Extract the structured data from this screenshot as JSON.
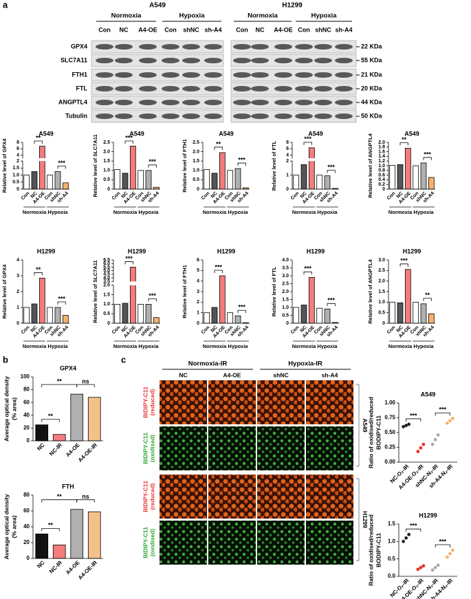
{
  "panel_labels": [
    "a",
    "b",
    "c"
  ],
  "blots": {
    "cell_lines": [
      "A549",
      "H1299"
    ],
    "conditions": [
      "Normoxia",
      "Hypoxia"
    ],
    "lanes": [
      "Con",
      "NC",
      "A4-OE",
      "Con",
      "shNC",
      "sh-A4"
    ],
    "proteins": [
      "GPX4",
      "SLC7A11",
      "FTH1",
      "FTL",
      "ANGPTL4",
      "Tubulin"
    ],
    "sizes": [
      "22 KDa",
      "55 KDa",
      "21 KDa",
      "20 KDa",
      "44 KDa",
      "50 KDa"
    ]
  },
  "imaging": {
    "conditions": [
      "Normoxia-IR",
      "Hypoxia-IR"
    ],
    "groups": [
      "NC",
      "A4-OE",
      "shNC",
      "sh-A4"
    ],
    "stains": [
      [
        "BIDIPY-C11",
        "(reduced)"
      ],
      [
        "BIDIPY-C11",
        "(oxidised)"
      ]
    ],
    "cell_lines": [
      "A549",
      "H1299"
    ]
  },
  "chart_data": [
    {
      "type": "bar",
      "title": "A549",
      "ylabel": "Relative level of GPX4",
      "categories": [
        "Con",
        "NC",
        "A4-OE",
        "Con",
        "shNC",
        "sh-A4"
      ],
      "groups": [
        "Normoxia",
        "Hypoxia"
      ],
      "values": [
        1.0,
        1.25,
        6.8,
        1.0,
        1.25,
        0.45
      ],
      "colors": [
        "#ffffff",
        "#555555",
        "#f47c7c",
        "#ffffff",
        "#b0b0b0",
        "#f5b26b"
      ],
      "ylim": [
        0,
        8
      ],
      "ybreak": [
        2,
        3
      ],
      "yticks": [
        0,
        0.5,
        {
          "value": 1,
          "label": "1.0"
        },
        1.5,
        2,
        4,
        6,
        8
      ],
      "annotations": [
        "**",
        "***"
      ]
    },
    {
      "type": "bar",
      "title": "A549",
      "ylabel": "Relative level of SLC7A11",
      "categories": [
        "Con",
        "NC",
        "A4-OE",
        "Con",
        "shNC",
        "sh-A4"
      ],
      "groups": [
        "Normoxia",
        "Hypoxia"
      ],
      "values": [
        1.05,
        0.85,
        2.3,
        1.0,
        1.0,
        0.1
      ],
      "colors": [
        "#ffffff",
        "#555555",
        "#f47c7c",
        "#ffffff",
        "#b0b0b0",
        "#f5b26b"
      ],
      "ylim": [
        0,
        2.5
      ],
      "yticks": [
        0,
        0.5,
        {
          "value": 1,
          "label": "1.0"
        },
        1.5,
        {
          "value": 2,
          "label": "2.0"
        },
        2.5
      ],
      "annotations": [
        "***",
        "***"
      ]
    },
    {
      "type": "bar",
      "title": "A549",
      "ylabel": "Relative level of FTH1",
      "categories": [
        "Con",
        "NC",
        "A4-OE",
        "Con",
        "shNC",
        "sh-A4"
      ],
      "groups": [
        "Normoxia",
        "Hypoxia"
      ],
      "values": [
        1.05,
        0.85,
        1.95,
        1.0,
        1.1,
        0.07
      ],
      "colors": [
        "#ffffff",
        "#555555",
        "#f47c7c",
        "#ffffff",
        "#b0b0b0",
        "#f5b26b"
      ],
      "ylim": [
        0,
        2.5
      ],
      "yticks": [
        0,
        0.5,
        {
          "value": 1,
          "label": "1.0"
        },
        1.5,
        {
          "value": 2,
          "label": "2.0"
        },
        2.5
      ],
      "annotations": [
        "**",
        "***"
      ]
    },
    {
      "type": "bar",
      "title": "A549",
      "ylabel": "Relative level of FTL",
      "categories": [
        "Con",
        "NC",
        "A4-OE",
        "Con",
        "shNC",
        "sh-A4"
      ],
      "groups": [
        "Normoxia",
        "Hypoxia"
      ],
      "values": [
        1.0,
        1.75,
        6.3,
        1.0,
        0.95,
        0.05
      ],
      "colors": [
        "#ffffff",
        "#555555",
        "#f47c7c",
        "#ffffff",
        "#b0b0b0",
        "#f5b26b"
      ],
      "ylim": [
        0,
        8
      ],
      "ybreak": [
        2,
        3
      ],
      "yticks": [
        0,
        1,
        2,
        4,
        6,
        8
      ],
      "annotations": [
        "***",
        "***"
      ]
    },
    {
      "type": "bar",
      "title": "A549",
      "ylabel": "Relative level of ANGPTL4",
      "categories": [
        "Con",
        "NC",
        "A4-OE",
        "Con",
        "shNC",
        "sh-A4"
      ],
      "groups": [
        "Normoxia",
        "Hypoxia"
      ],
      "values": [
        1.02,
        1.05,
        1.75,
        1.0,
        1.12,
        0.5
      ],
      "colors": [
        "#ffffff",
        "#555555",
        "#f47c7c",
        "#ffffff",
        "#b0b0b0",
        "#f5b26b"
      ],
      "ylim": [
        0,
        2
      ],
      "yticks": [
        0,
        0.2,
        0.4,
        0.6,
        0.8,
        {
          "value": 1,
          "label": "1.0"
        },
        1.2,
        1.4,
        1.6,
        1.8,
        {
          "value": 2,
          "label": "2.0"
        }
      ],
      "annotations": [
        "**",
        "***"
      ]
    },
    {
      "type": "bar",
      "title": "H1299",
      "ylabel": "Relative level of GPX4",
      "categories": [
        "Con",
        "NC",
        "A4-OE",
        "Con",
        "shNC",
        "sh-A4"
      ],
      "groups": [
        "Normoxia",
        "Hypoxia"
      ],
      "values": [
        1.0,
        1.22,
        2.85,
        1.0,
        1.0,
        0.5
      ],
      "colors": [
        "#ffffff",
        "#555555",
        "#f47c7c",
        "#ffffff",
        "#b0b0b0",
        "#f5b26b"
      ],
      "ylim": [
        0,
        4
      ],
      "yticks": [
        0,
        1,
        2,
        3,
        4
      ],
      "annotations": [
        "**",
        "***"
      ]
    },
    {
      "type": "bar",
      "title": "H1299",
      "ylabel": "Relative level of SLC7A11",
      "categories": [
        "Con",
        "NC",
        "A4-OE",
        "Con",
        "shNC",
        "sh-A4"
      ],
      "groups": [
        "Normoxia",
        "Hypoxia"
      ],
      "values": [
        1.0,
        1.05,
        5.5,
        1.0,
        1.0,
        0.3
      ],
      "colors": [
        "#ffffff",
        "#555555",
        "#f47c7c",
        "#ffffff",
        "#b0b0b0",
        "#f5b26b"
      ],
      "ylim": [
        0,
        6.5
      ],
      "ybreak": [
        2,
        3.5
      ],
      "yticks": [
        0,
        0.5,
        {
          "value": 1,
          "label": "1.0"
        },
        1.5,
        {
          "value": 2,
          "label": "2.0"
        },
        3.5,
        {
          "value": 4,
          "label": "4.0"
        },
        4.5,
        {
          "value": 5,
          "label": "5.0"
        },
        5.5,
        {
          "value": 6,
          "label": "6.0"
        },
        6.5
      ],
      "annotations": [
        "***",
        "***"
      ]
    },
    {
      "type": "bar",
      "title": "H1299",
      "ylabel": "Relative level of FTH1",
      "categories": [
        "Con",
        "NC",
        "A4-OE",
        "Con",
        "shNC",
        "sh-A4"
      ],
      "groups": [
        "Normoxia",
        "Hypoxia"
      ],
      "values": [
        1.0,
        1.5,
        4.5,
        1.0,
        0.7,
        0.05
      ],
      "colors": [
        "#ffffff",
        "#555555",
        "#f47c7c",
        "#ffffff",
        "#b0b0b0",
        "#f5b26b"
      ],
      "ylim": [
        0,
        6
      ],
      "yticks": [
        0,
        1,
        2,
        3,
        4,
        5,
        6
      ],
      "annotations": [
        "***",
        "***"
      ]
    },
    {
      "type": "bar",
      "title": "H1299",
      "ylabel": "Relative level of FTL",
      "categories": [
        "Con",
        "NC",
        "A4-OE",
        "Con",
        "shNC",
        "sh-A4"
      ],
      "groups": [
        "Normoxia",
        "Hypoxia"
      ],
      "values": [
        1.0,
        1.15,
        2.9,
        0.95,
        0.9,
        0.05
      ],
      "colors": [
        "#ffffff",
        "#555555",
        "#f47c7c",
        "#ffffff",
        "#b0b0b0",
        "#f5b26b"
      ],
      "ylim": [
        0,
        4
      ],
      "yticks": [
        0,
        0.5,
        {
          "value": 1,
          "label": "1.0"
        },
        1.5,
        {
          "value": 2,
          "label": "2.0"
        },
        2.5,
        {
          "value": 3,
          "label": "3.0"
        },
        3.5,
        {
          "value": 4,
          "label": "4.0"
        }
      ],
      "annotations": [
        "***",
        "***"
      ]
    },
    {
      "type": "bar",
      "title": "H1299",
      "ylabel": "Relative level of ANGPTL4",
      "categories": [
        "Con",
        "NC",
        "A4-OE",
        "Con",
        "shNC",
        "sh-A4"
      ],
      "groups": [
        "Normoxia",
        "Hypoxia"
      ],
      "values": [
        1.0,
        0.97,
        2.55,
        1.0,
        0.92,
        0.45
      ],
      "colors": [
        "#ffffff",
        "#555555",
        "#f47c7c",
        "#ffffff",
        "#b0b0b0",
        "#f5b26b"
      ],
      "ylim": [
        0,
        3
      ],
      "yticks": [
        0,
        0.5,
        {
          "value": 1,
          "label": "1.0"
        },
        1.5,
        {
          "value": 2,
          "label": "2.0"
        },
        2.5,
        {
          "value": 3,
          "label": "3.0"
        }
      ],
      "annotations": [
        "***",
        "**"
      ]
    },
    {
      "type": "bar",
      "title": "GPX4",
      "ylabel": [
        "Average optical density",
        "(% area)"
      ],
      "categories": [
        "NC",
        "NC-IR",
        "A4-OE",
        "A4-OE-IR"
      ],
      "values": [
        25,
        10,
        73,
        68
      ],
      "colors": [
        "#111111",
        "#f47c7c",
        "#b0b0b0",
        "#f5c08a"
      ],
      "ylim": [
        0,
        100
      ],
      "yticks": [
        0,
        20,
        40,
        60,
        80,
        100
      ],
      "annotations": [
        "**",
        "**",
        "ns"
      ]
    },
    {
      "type": "bar",
      "title": "FTH",
      "ylabel": [
        "Average optical density",
        "(% area)"
      ],
      "categories": [
        "NC",
        "NC-IR",
        "A4-OE",
        "A4-OE-IR"
      ],
      "values": [
        31,
        17,
        62,
        59
      ],
      "colors": [
        "#111111",
        "#f47c7c",
        "#b0b0b0",
        "#f5c08a"
      ],
      "ylim": [
        0,
        80
      ],
      "yticks": [
        0,
        20,
        40,
        60,
        80
      ],
      "annotations": [
        "**",
        "**",
        "ns"
      ]
    },
    {
      "type": "scatter",
      "title": "A549",
      "ylabel": [
        "Ratio of oxidised/reduced",
        "BODIPY-C11"
      ],
      "categories": [
        "NC-O₂-IR",
        "A4-OE-O₂-IR",
        "shNC-N₂-IR",
        "sh-A4-N₂-IR"
      ],
      "values": [
        [
          0.6,
          0.62,
          0.64
        ],
        [
          0.18,
          0.24,
          0.3
        ],
        [
          0.3,
          0.38,
          0.46
        ],
        [
          0.66,
          0.7,
          0.74
        ]
      ],
      "colors": [
        "#222222",
        "#e8322f",
        "#aaaaaa",
        "#f5b26b"
      ],
      "ylim": [
        0,
        1
      ],
      "yticks": [
        {
          "value": 0,
          "label": "0.00"
        },
        0.25,
        {
          "value": 0.5,
          "label": "0.50"
        },
        0.75,
        {
          "value": 1,
          "label": "1.00"
        }
      ],
      "annotations": [
        "***",
        "***"
      ]
    },
    {
      "type": "scatter",
      "title": "H1299",
      "ylabel": [
        "Ratio of oxidised/reduced",
        "BODIPY-C11"
      ],
      "categories": [
        "NC-O₂-IR",
        "A4-OE-O₂-IR",
        "shNC-N₂-IR",
        "sh-A4-N₂-IR"
      ],
      "values": [
        [
          1.0,
          1.1,
          1.2
        ],
        [
          0.2,
          0.25,
          0.3
        ],
        [
          0.18,
          0.25,
          0.32
        ],
        [
          0.55,
          0.65,
          0.75
        ]
      ],
      "colors": [
        "#222222",
        "#e8322f",
        "#aaaaaa",
        "#f5b26b"
      ],
      "ylim": [
        0,
        1.5
      ],
      "yticks": [
        {
          "value": 0,
          "label": "0.0"
        },
        0.5,
        {
          "value": 1,
          "label": "1.0"
        },
        1.5
      ],
      "annotations": [
        "***",
        "***"
      ]
    }
  ]
}
